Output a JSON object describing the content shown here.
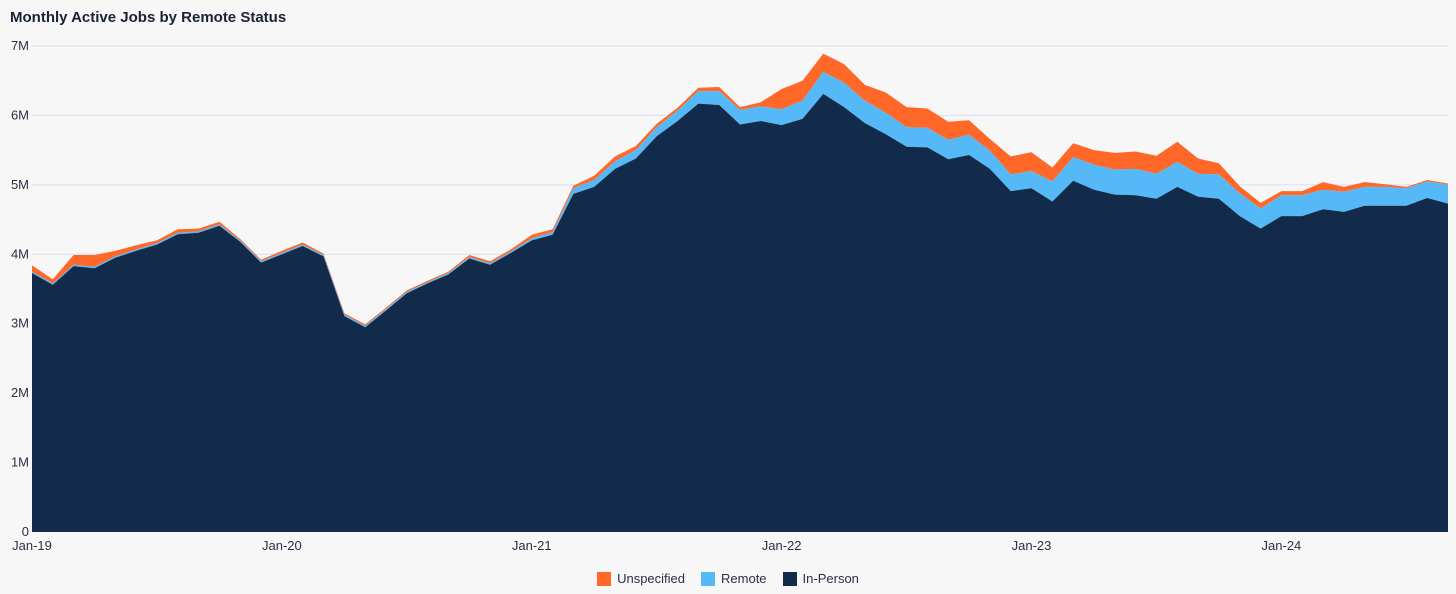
{
  "chart_data": {
    "type": "area",
    "stacked": true,
    "title": "Monthly Active Jobs by Remote Status",
    "xlabel": "",
    "ylabel": "",
    "ylim": [
      0,
      7000000
    ],
    "y_ticks": [
      0,
      1000000,
      2000000,
      3000000,
      4000000,
      5000000,
      6000000,
      7000000
    ],
    "y_tick_labels": [
      "0",
      "1M",
      "2M",
      "3M",
      "4M",
      "5M",
      "6M",
      "7M"
    ],
    "x_tick_labels": [
      "Jan-19",
      "Jan-20",
      "Jan-21",
      "Jan-22",
      "Jan-23",
      "Jan-24"
    ],
    "x_tick_index": [
      0,
      12,
      24,
      36,
      48,
      60
    ],
    "start_month": "Jan-19",
    "x_last_index": 68,
    "grid": true,
    "legend_position": "bottom",
    "series": [
      {
        "name": "In-Person",
        "color": "#132b4b",
        "values": [
          3730000,
          3560000,
          3830000,
          3800000,
          3950000,
          4050000,
          4140000,
          4290000,
          4310000,
          4410000,
          4180000,
          3880000,
          4000000,
          4120000,
          3970000,
          3110000,
          2950000,
          3190000,
          3440000,
          3580000,
          3710000,
          3940000,
          3850000,
          4020000,
          4200000,
          4280000,
          4870000,
          4970000,
          5230000,
          5380000,
          5700000,
          5920000,
          6170000,
          6150000,
          5870000,
          5920000,
          5860000,
          5950000,
          6310000,
          6120000,
          5890000,
          5730000,
          5550000,
          5540000,
          5370000,
          5430000,
          5230000,
          4910000,
          4950000,
          4760000,
          5060000,
          4930000,
          4860000,
          4850000,
          4800000,
          4970000,
          4830000,
          4800000,
          4550000,
          4370000,
          4550000,
          4550000,
          4650000,
          4610000,
          4700000,
          4700000,
          4700000,
          4810000,
          4730000
        ]
      },
      {
        "name": "Remote",
        "color": "#56b9f7",
        "values": [
          20000,
          20000,
          20000,
          20000,
          20000,
          20000,
          20000,
          20000,
          20000,
          20000,
          20000,
          20000,
          20000,
          20000,
          20000,
          20000,
          20000,
          20000,
          20000,
          20000,
          20000,
          20000,
          20000,
          20000,
          30000,
          40000,
          80000,
          100000,
          110000,
          120000,
          130000,
          150000,
          180000,
          200000,
          210000,
          210000,
          230000,
          260000,
          320000,
          350000,
          320000,
          310000,
          280000,
          280000,
          280000,
          290000,
          260000,
          240000,
          250000,
          290000,
          340000,
          360000,
          360000,
          380000,
          360000,
          360000,
          330000,
          350000,
          330000,
          290000,
          300000,
          300000,
          280000,
          290000,
          270000,
          270000,
          250000,
          240000,
          270000
        ]
      },
      {
        "name": "Unspecified",
        "color": "#ff6828",
        "values": [
          90000,
          60000,
          140000,
          170000,
          80000,
          60000,
          40000,
          50000,
          40000,
          40000,
          20000,
          20000,
          30000,
          30000,
          20000,
          20000,
          20000,
          20000,
          20000,
          20000,
          20000,
          30000,
          30000,
          30000,
          50000,
          40000,
          40000,
          60000,
          70000,
          60000,
          50000,
          40000,
          50000,
          60000,
          40000,
          60000,
          290000,
          290000,
          260000,
          270000,
          230000,
          290000,
          290000,
          280000,
          260000,
          210000,
          170000,
          260000,
          270000,
          200000,
          200000,
          210000,
          240000,
          250000,
          260000,
          290000,
          220000,
          160000,
          100000,
          80000,
          60000,
          60000,
          110000,
          70000,
          70000,
          40000,
          20000,
          20000,
          20000
        ]
      }
    ]
  }
}
